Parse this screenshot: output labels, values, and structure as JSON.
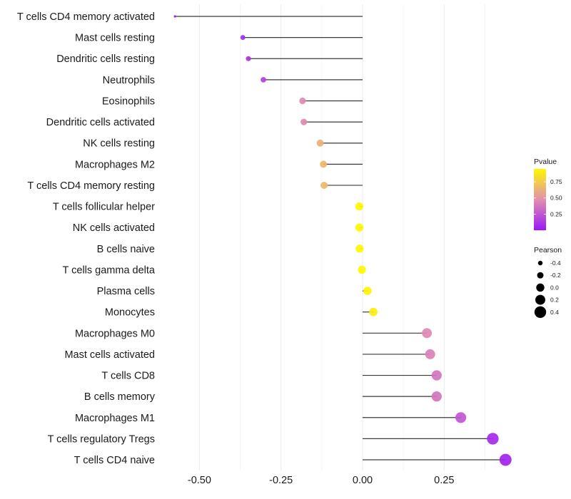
{
  "chart_data": {
    "type": "lollipop",
    "title": "",
    "xlabel": "",
    "ylabel": "",
    "xlim": [
      -0.6,
      0.48
    ],
    "x_ticks": [
      -0.5,
      -0.25,
      0.0,
      0.25
    ],
    "x_tick_labels": [
      "-0.50",
      "-0.25",
      "0.00",
      "0.25"
    ],
    "x_minor_gridlines": [
      -0.375,
      -0.125,
      0.125,
      0.375
    ],
    "grid": true,
    "categories": [
      "T cells CD4 memory activated",
      "Mast cells resting",
      "Dendritic cells resting",
      "Neutrophils",
      "Eosinophils",
      "Dendritic cells activated",
      "NK cells resting",
      "Macrophages M2",
      "T cells CD4 memory resting",
      "T cells follicular helper",
      "NK cells activated",
      "B cells naive",
      "T cells gamma delta",
      "Plasma cells",
      "Monocytes",
      "Macrophages M0",
      "Mast cells activated",
      "T cells CD8",
      "B cells memory",
      "Macrophages M1",
      "T cells regulatory  Tregs",
      "T cells CD4 naive"
    ],
    "series": [
      {
        "name": "Pearson",
        "values": [
          -0.575,
          -0.367,
          -0.35,
          -0.304,
          -0.184,
          -0.18,
          -0.13,
          -0.12,
          -0.118,
          -0.01,
          -0.01,
          -0.009,
          -0.002,
          0.015,
          0.033,
          0.197,
          0.207,
          0.227,
          0.227,
          0.301,
          0.399,
          0.438
        ]
      },
      {
        "name": "Pvalue",
        "values": [
          0.001,
          0.08,
          0.1,
          0.17,
          0.45,
          0.46,
          0.63,
          0.66,
          0.67,
          0.96,
          0.96,
          0.97,
          0.99,
          0.93,
          0.91,
          0.45,
          0.42,
          0.37,
          0.37,
          0.25,
          0.07,
          0.04
        ]
      }
    ],
    "legend": {
      "placement": "right",
      "color": {
        "title": "Pvalue",
        "breaks": [
          0.25,
          0.5,
          0.75
        ],
        "labels": [
          "0.25",
          "0.50",
          "0.75"
        ],
        "range": [
          0.0,
          0.95
        ],
        "low_color": "#9B19F5",
        "mid_color": "#E28FB0",
        "high_color": "#FFF700"
      },
      "size": {
        "title": "Pearson",
        "breaks": [
          -0.4,
          -0.2,
          0.0,
          0.2,
          0.4
        ],
        "labels": [
          "-0.4",
          "-0.2",
          "0.0",
          "0.2",
          "0.4"
        ]
      }
    }
  }
}
